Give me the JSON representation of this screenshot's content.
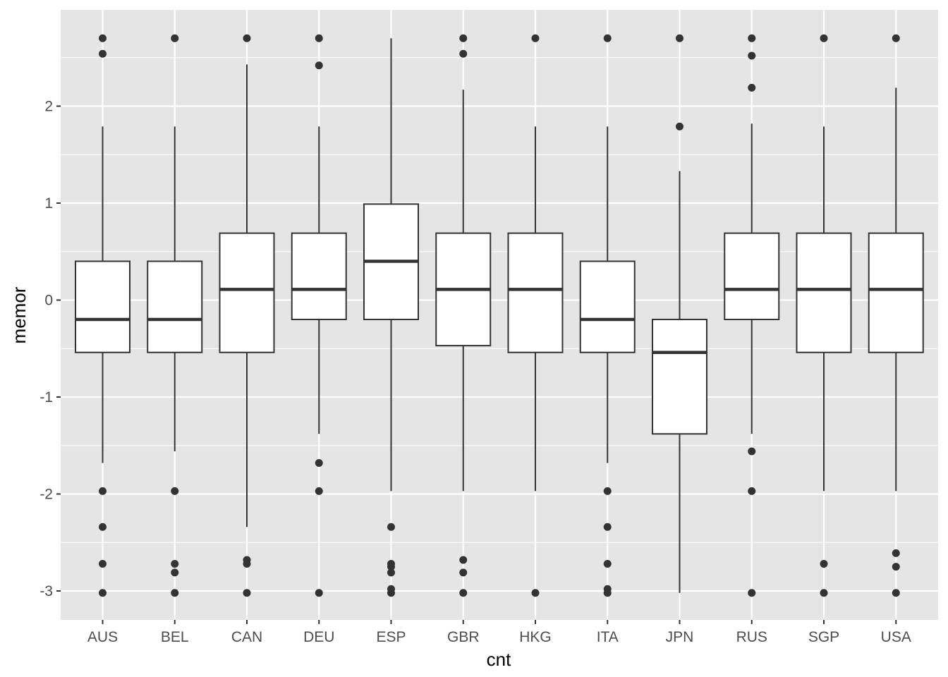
{
  "chart_data": {
    "type": "boxplot",
    "xlabel": "cnt",
    "ylabel": "memor",
    "categories": [
      "AUS",
      "BEL",
      "CAN",
      "DEU",
      "ESP",
      "GBR",
      "HKG",
      "ITA",
      "JPN",
      "RUS",
      "SGP",
      "USA"
    ],
    "ylim": [
      -3.3,
      2.98
    ],
    "yticks": [
      -3,
      -2,
      -1,
      0,
      1,
      2
    ],
    "ytick_labels": [
      "-3",
      "-2",
      "-1",
      "0",
      "1",
      "2"
    ],
    "grid": true,
    "colors": {
      "panel": "#e5e5e5",
      "grid": "#ffffff",
      "box_fill": "#ffffff",
      "stroke": "#333333",
      "points": "#333333"
    },
    "boxes": [
      {
        "cat": "AUS",
        "lower": -1.68,
        "q1": -0.54,
        "median": -0.2,
        "q3": 0.4,
        "upper": 1.79,
        "outliers": [
          2.7,
          2.54,
          -1.97,
          -2.34,
          -2.72,
          -3.02
        ]
      },
      {
        "cat": "BEL",
        "lower": -1.56,
        "q1": -0.54,
        "median": -0.2,
        "q3": 0.4,
        "upper": 1.79,
        "outliers": [
          2.7,
          -1.97,
          -2.72,
          -2.81,
          -3.02
        ]
      },
      {
        "cat": "CAN",
        "lower": -2.34,
        "q1": -0.54,
        "median": 0.11,
        "q3": 0.69,
        "upper": 2.43,
        "outliers": [
          2.7,
          -2.68,
          -2.72,
          -3.02
        ]
      },
      {
        "cat": "DEU",
        "lower": -1.38,
        "q1": -0.2,
        "median": 0.11,
        "q3": 0.69,
        "upper": 1.79,
        "outliers": [
          2.7,
          2.42,
          -1.68,
          -1.97,
          -3.02
        ]
      },
      {
        "cat": "ESP",
        "lower": -1.97,
        "q1": -0.2,
        "median": 0.4,
        "q3": 0.99,
        "upper": 2.7,
        "outliers": [
          -2.34,
          -2.72,
          -2.75,
          -2.81,
          -2.98,
          -3.02
        ]
      },
      {
        "cat": "GBR",
        "lower": -1.97,
        "q1": -0.47,
        "median": 0.11,
        "q3": 0.69,
        "upper": 2.17,
        "outliers": [
          2.7,
          2.54,
          -2.68,
          -2.81,
          -3.02
        ]
      },
      {
        "cat": "HKG",
        "lower": -1.97,
        "q1": -0.54,
        "median": 0.11,
        "q3": 0.69,
        "upper": 1.79,
        "outliers": [
          2.7,
          -3.02
        ]
      },
      {
        "cat": "ITA",
        "lower": -1.68,
        "q1": -0.54,
        "median": -0.2,
        "q3": 0.4,
        "upper": 1.79,
        "outliers": [
          2.7,
          -1.97,
          -2.34,
          -2.72,
          -2.98,
          -3.02
        ]
      },
      {
        "cat": "JPN",
        "lower": -3.02,
        "q1": -1.38,
        "median": -0.54,
        "q3": -0.2,
        "upper": 1.33,
        "outliers": [
          2.7,
          1.79
        ]
      },
      {
        "cat": "RUS",
        "lower": -1.38,
        "q1": -0.2,
        "median": 0.11,
        "q3": 0.69,
        "upper": 1.82,
        "outliers": [
          2.7,
          2.52,
          2.19,
          -1.56,
          -1.97,
          -3.02
        ]
      },
      {
        "cat": "SGP",
        "lower": -1.97,
        "q1": -0.54,
        "median": 0.11,
        "q3": 0.69,
        "upper": 1.79,
        "outliers": [
          2.7,
          -2.72,
          -3.02
        ]
      },
      {
        "cat": "USA",
        "lower": -1.97,
        "q1": -0.54,
        "median": 0.11,
        "q3": 0.69,
        "upper": 2.19,
        "outliers": [
          2.7,
          -2.61,
          -2.75,
          -3.02
        ]
      }
    ]
  }
}
